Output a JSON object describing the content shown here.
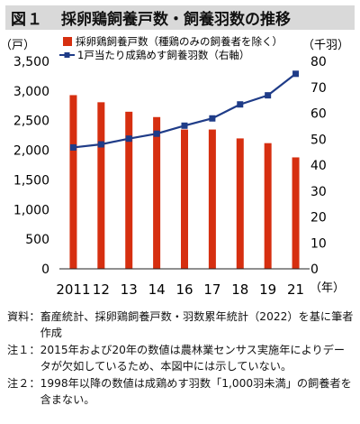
{
  "figure": {
    "label": "図１",
    "title": "採卵鶏飼養戸数・飼養羽数の推移"
  },
  "chart_data": {
    "type": "bar+line",
    "categories": [
      "2011",
      "12",
      "13",
      "14",
      "16",
      "17",
      "18",
      "19",
      "21"
    ],
    "x_unit_label": "（年）",
    "left_axis": {
      "unit_label": "（戸）",
      "min": 0,
      "max": 3500,
      "step": 500,
      "tick_labels": [
        "0",
        "500",
        "1,000",
        "1,500",
        "2,000",
        "2,500",
        "3,000",
        "3,500"
      ]
    },
    "right_axis": {
      "unit_label": "（千羽）",
      "min": 0,
      "max": 80,
      "step": 10,
      "tick_labels": [
        "0",
        "10",
        "20",
        "30",
        "40",
        "50",
        "60",
        "70",
        "80"
      ]
    },
    "series": [
      {
        "name": "採卵鶏飼養戸数（種鶏のみの飼養者を除く）",
        "type": "bar",
        "axis": "left",
        "color": "#d62f10",
        "values": [
          2930,
          2810,
          2650,
          2560,
          2350,
          2350,
          2200,
          2120,
          1880
        ]
      },
      {
        "name": "1戸当たり成鶏めす飼養羽数（右軸）",
        "type": "line",
        "axis": "right",
        "color": "#1f3c88",
        "values": [
          46.8,
          48.0,
          50.2,
          52.1,
          55.2,
          58.0,
          63.4,
          66.9,
          75.2
        ]
      }
    ],
    "grid": false,
    "legend_position": "top"
  },
  "notes": [
    {
      "label": "資料：",
      "text": "畜産統計、採卵鶏飼養戸数・羽数累年統計（2022）を基に筆者作成"
    },
    {
      "label": "注１：",
      "text": "2015年および20年の数値は農林業センサス実施年によりデータが欠如しているため、本図中には示していない。"
    },
    {
      "label": "注２：",
      "text": "1998年以降の数値は成鶏めす羽数「1,000羽未満」の飼養者を含まない。"
    }
  ]
}
